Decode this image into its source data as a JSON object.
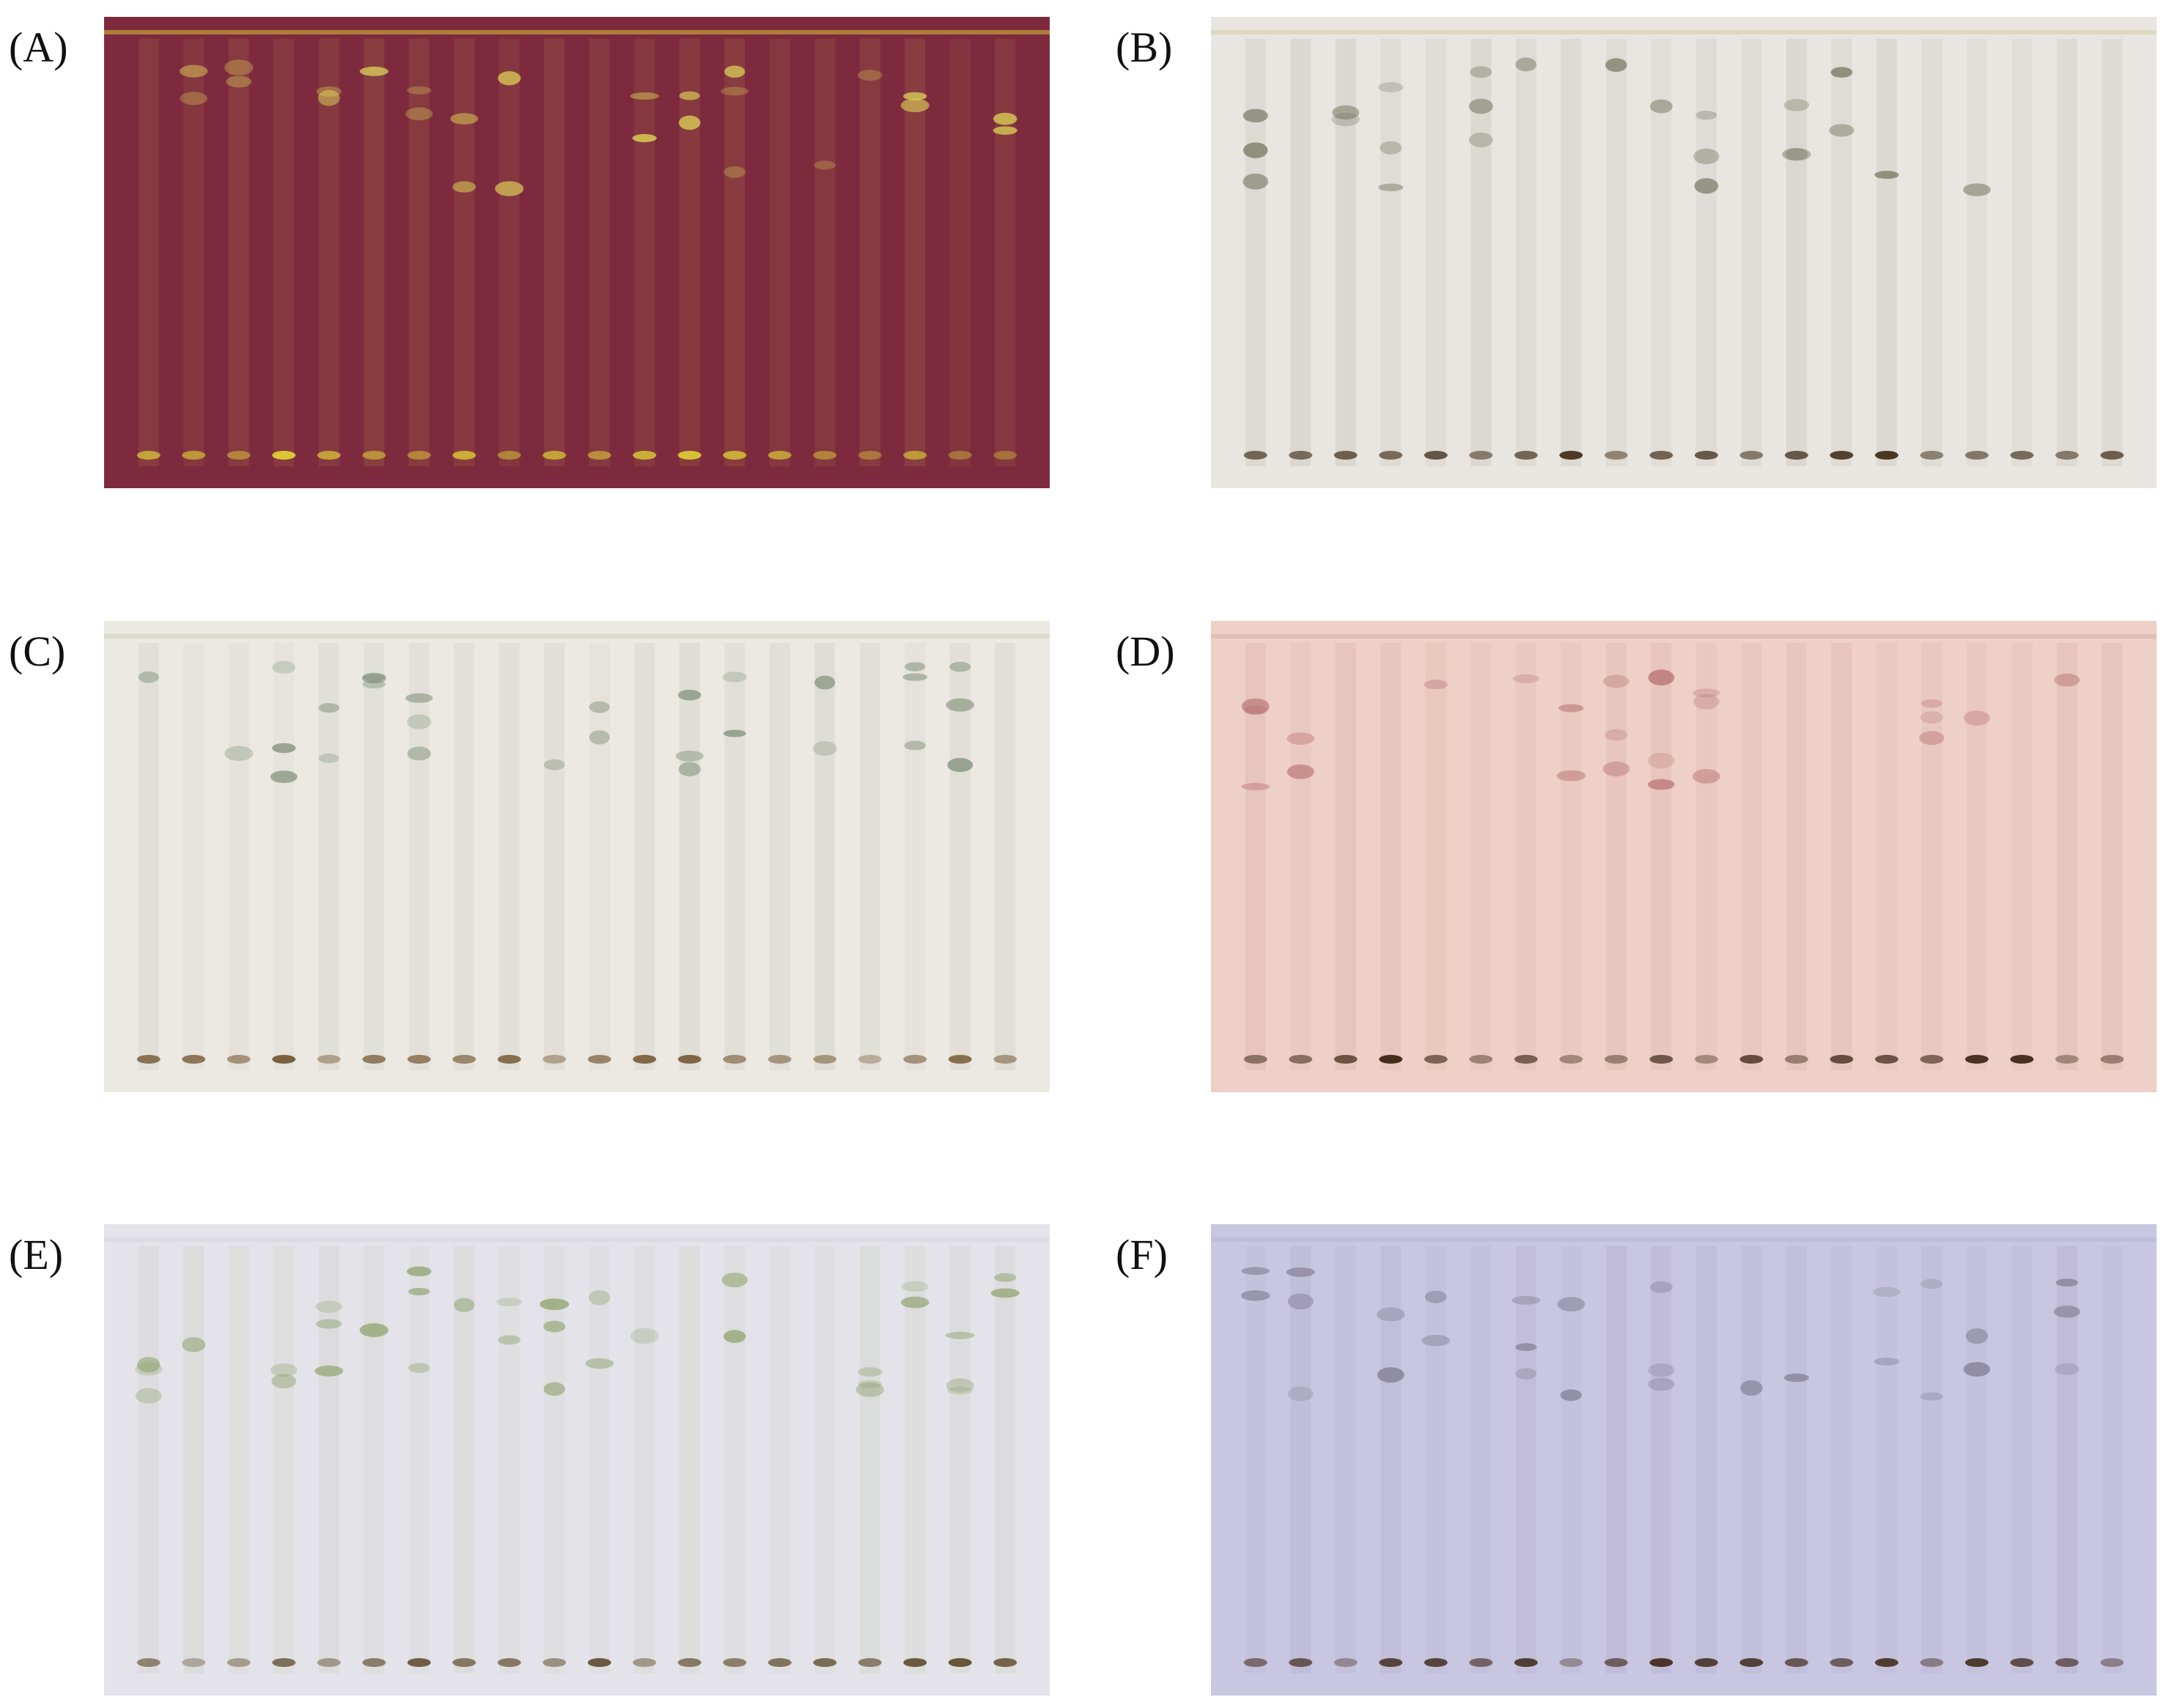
{
  "figure": {
    "panels": [
      {
        "label": "(A)",
        "background": "#7e2a3e",
        "front_color": "#c7a03a",
        "base_color": "#e1d335",
        "hue": "#e4e05a"
      },
      {
        "label": "(B)",
        "background": "#e9e6e1",
        "front_color": "#d9d2b2",
        "base_color": "#3a2510",
        "hue": "#6f6f5a"
      },
      {
        "label": "(C)",
        "background": "#ece9e3",
        "front_color": "#d5d4c4",
        "base_color": "#6b4b25",
        "hue": "#7f8d78"
      },
      {
        "label": "(D)",
        "background": "#eed0c6",
        "front_color": "#dcb7ae",
        "base_color": "#3b2414",
        "hue": "#b56f70"
      },
      {
        "label": "(E)",
        "background": "#e5e3ea",
        "front_color": "#d9d7de",
        "base_color": "#5a4828",
        "hue": "#8da06a"
      },
      {
        "label": "(F)",
        "background": "#c9c6e2",
        "front_color": "#bdb9d4",
        "base_color": "#3a2514",
        "hue": "#7d7a90"
      }
    ],
    "lane_count": 20
  }
}
